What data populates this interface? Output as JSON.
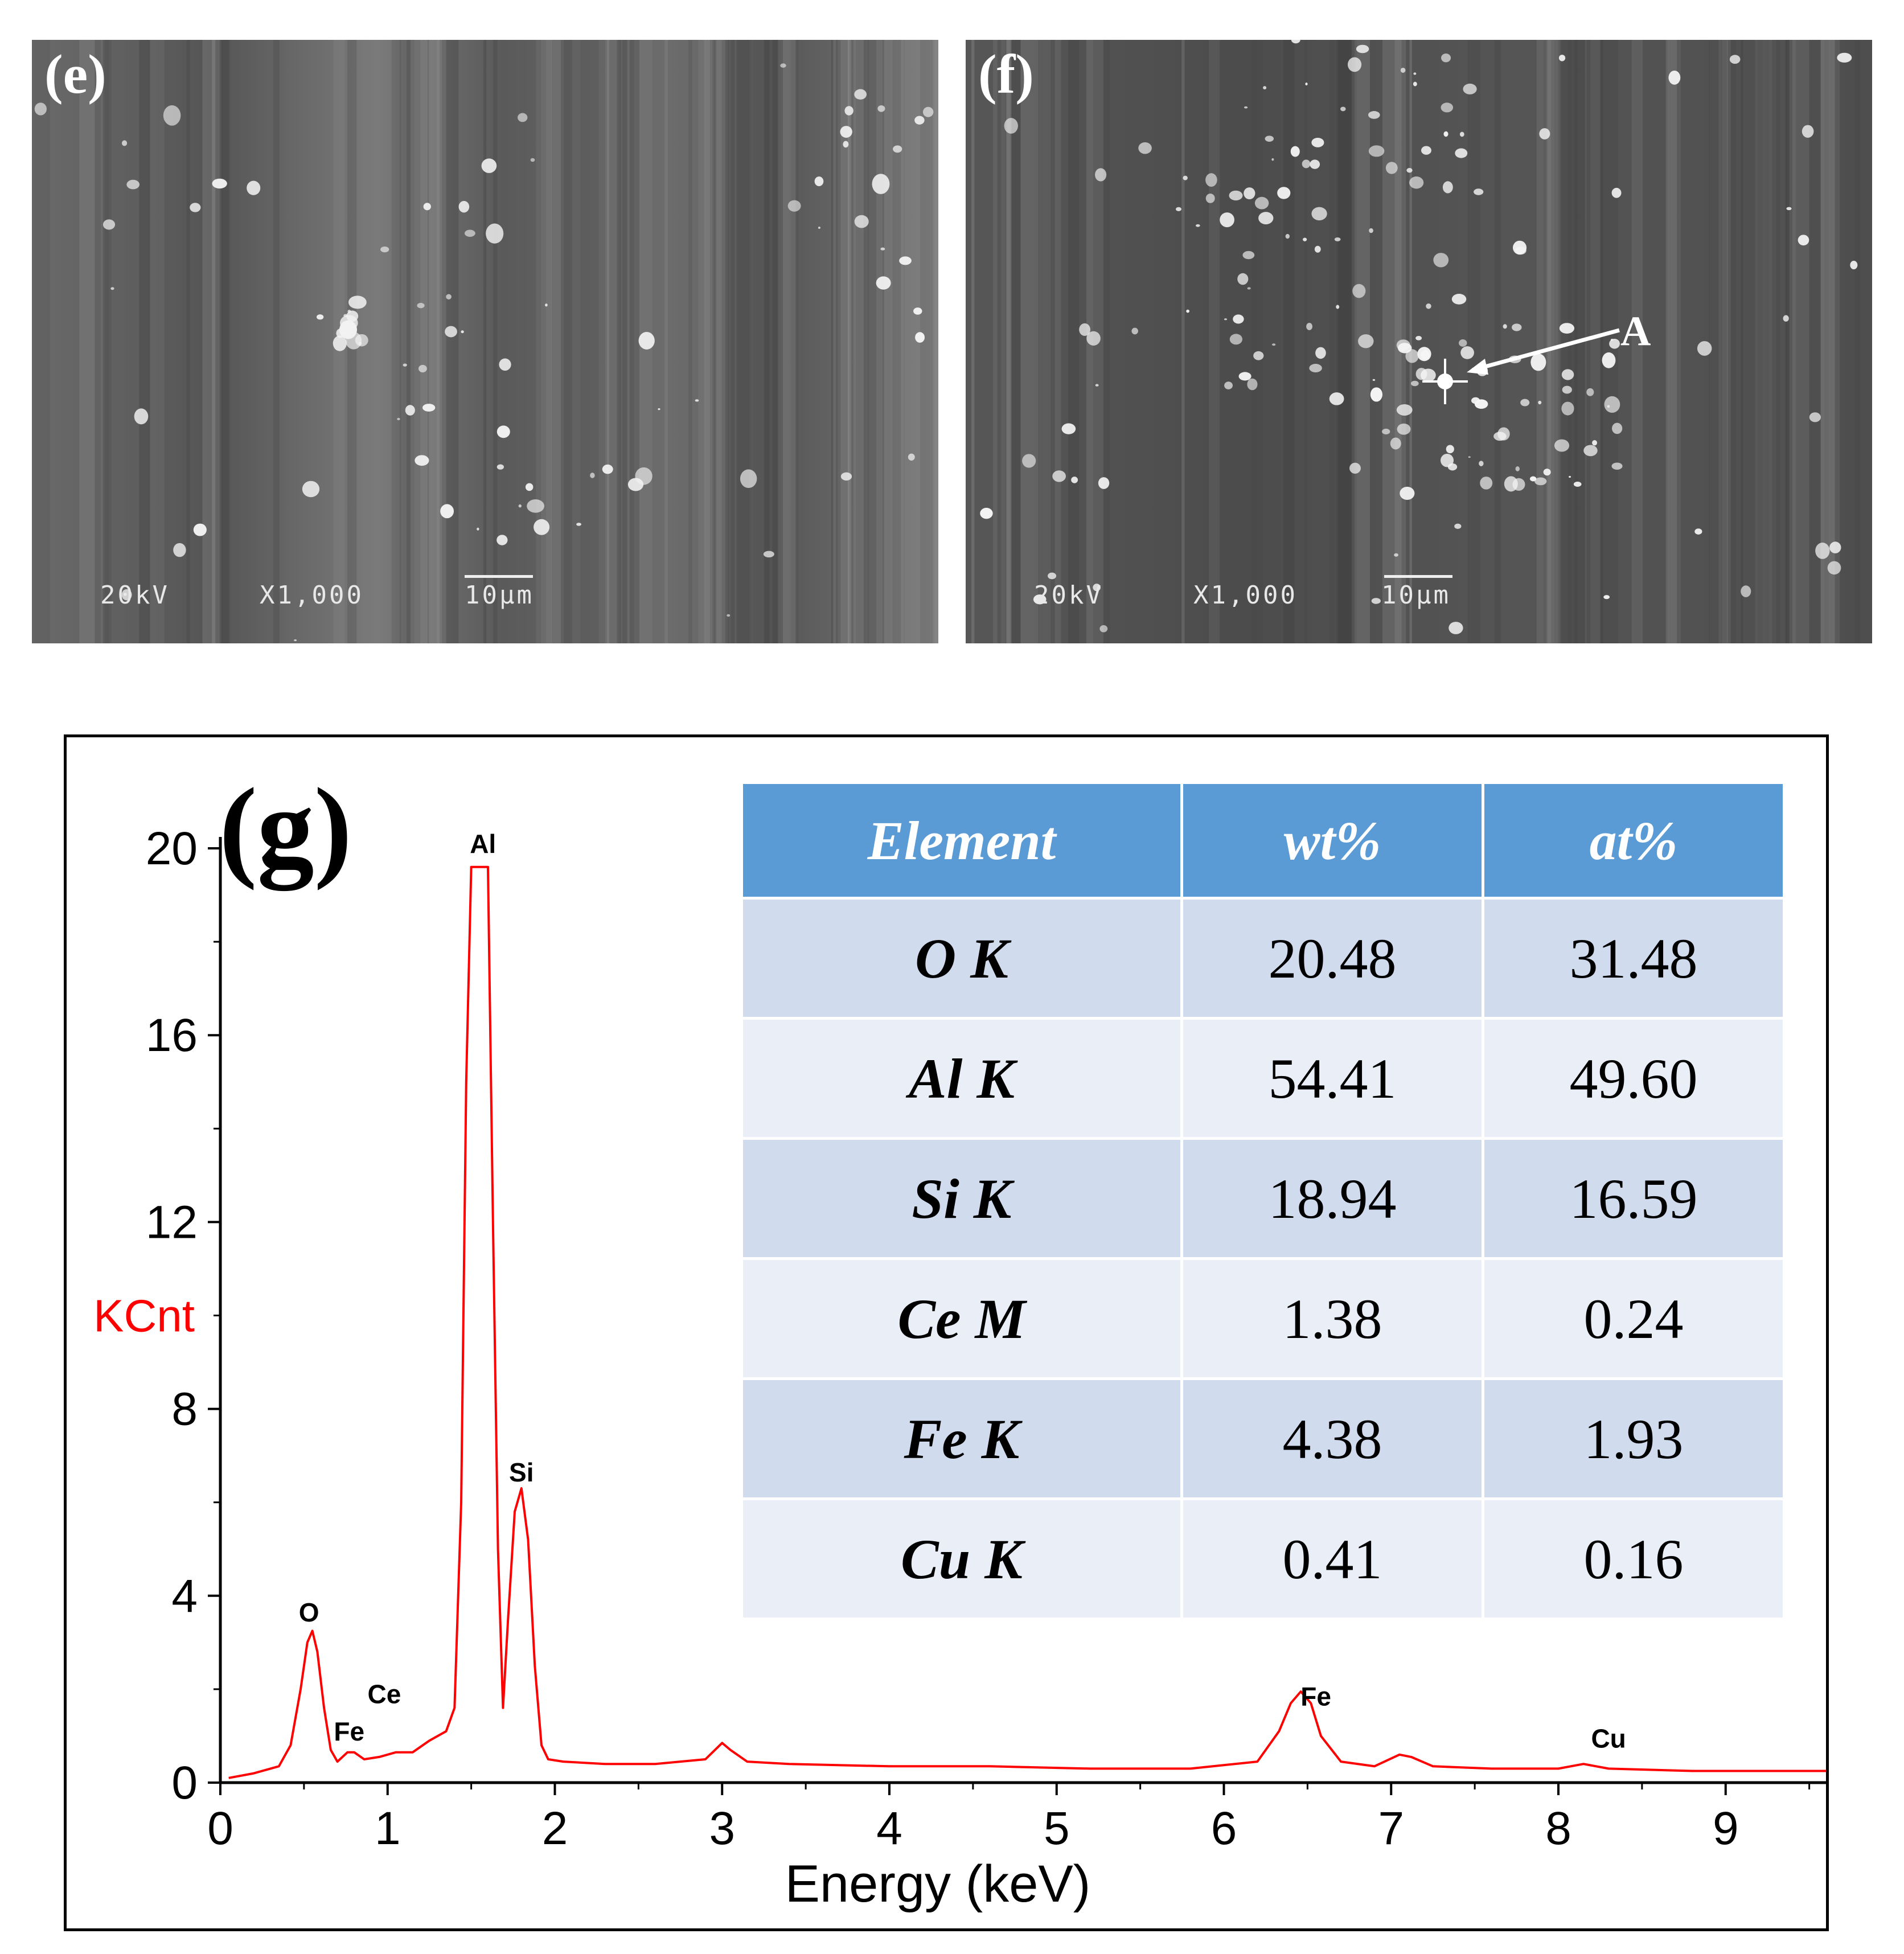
{
  "panels": {
    "e": {
      "label": "(e)",
      "kv": "20kV",
      "mag": "X1,000",
      "scale": "10μm"
    },
    "f": {
      "label": "(f)",
      "kv": "20kV",
      "mag": "X1,000",
      "scale": "10μm",
      "marker": "A"
    }
  },
  "chart_data": {
    "type": "line",
    "panel_label": "(g)",
    "xlabel": "Energy (keV)",
    "ylabel": "KCnt",
    "xlim": [
      0,
      9.6
    ],
    "ylim": [
      0,
      20
    ],
    "xticks": [
      0,
      1,
      2,
      3,
      4,
      5,
      6,
      7,
      8,
      9
    ],
    "yticks": [
      0,
      4,
      8,
      12,
      16,
      20
    ],
    "series": [
      {
        "color": "#ff0000",
        "x": [
          0.05,
          0.2,
          0.35,
          0.42,
          0.48,
          0.52,
          0.55,
          0.58,
          0.62,
          0.66,
          0.7,
          0.76,
          0.8,
          0.86,
          0.95,
          1.05,
          1.15,
          1.25,
          1.3,
          1.35,
          1.4,
          1.44,
          1.47,
          1.5,
          1.52,
          1.56,
          1.6,
          1.63,
          1.66,
          1.69,
          1.72,
          1.76,
          1.8,
          1.84,
          1.88,
          1.92,
          1.96,
          2.05,
          2.3,
          2.6,
          2.9,
          3.0,
          3.05,
          3.15,
          3.4,
          4.0,
          4.6,
          5.2,
          5.8,
          6.2,
          6.33,
          6.4,
          6.46,
          6.52,
          6.58,
          6.7,
          6.9,
          7.05,
          7.12,
          7.25,
          7.6,
          8.0,
          8.15,
          8.3,
          8.8,
          9.3,
          9.6
        ],
        "y": [
          0.1,
          0.2,
          0.35,
          0.8,
          2.0,
          3.0,
          3.25,
          2.8,
          1.6,
          0.7,
          0.45,
          0.65,
          0.65,
          0.5,
          0.55,
          0.65,
          0.65,
          0.9,
          1.0,
          1.1,
          1.6,
          6.0,
          15.0,
          19.6,
          19.6,
          19.6,
          19.6,
          12.0,
          5.0,
          1.6,
          3.5,
          5.8,
          6.3,
          5.2,
          2.5,
          0.8,
          0.5,
          0.45,
          0.4,
          0.4,
          0.5,
          0.85,
          0.7,
          0.45,
          0.4,
          0.35,
          0.35,
          0.3,
          0.3,
          0.45,
          1.1,
          1.7,
          1.95,
          1.7,
          1.0,
          0.45,
          0.35,
          0.6,
          0.55,
          0.35,
          0.3,
          0.3,
          0.4,
          0.3,
          0.25,
          0.25,
          0.25
        ]
      }
    ],
    "annotations": [
      {
        "text": "O",
        "x": 0.53,
        "y": 3.45
      },
      {
        "text": "Fe",
        "x": 0.77,
        "y": 0.9
      },
      {
        "text": "Ce",
        "x": 0.98,
        "y": 1.7
      },
      {
        "text": "Al",
        "x": 1.57,
        "y": 19.9
      },
      {
        "text": "Si",
        "x": 1.8,
        "y": 6.45
      },
      {
        "text": "Fe",
        "x": 6.55,
        "y": 1.65
      },
      {
        "text": "Cu",
        "x": 8.3,
        "y": 0.75
      }
    ]
  },
  "table": {
    "headers": [
      "Element",
      "wt%",
      "at%"
    ],
    "rows": [
      {
        "element": "O K",
        "wt": "20.48",
        "at": "31.48"
      },
      {
        "element": "Al K",
        "wt": "54.41",
        "at": "49.60"
      },
      {
        "element": "Si K",
        "wt": "18.94",
        "at": "16.59"
      },
      {
        "element": "Ce M",
        "wt": "1.38",
        "at": "0.24"
      },
      {
        "element": "Fe K",
        "wt": "4.38",
        "at": "1.93"
      },
      {
        "element": "Cu K",
        "wt": "0.41",
        "at": "0.16"
      }
    ]
  }
}
